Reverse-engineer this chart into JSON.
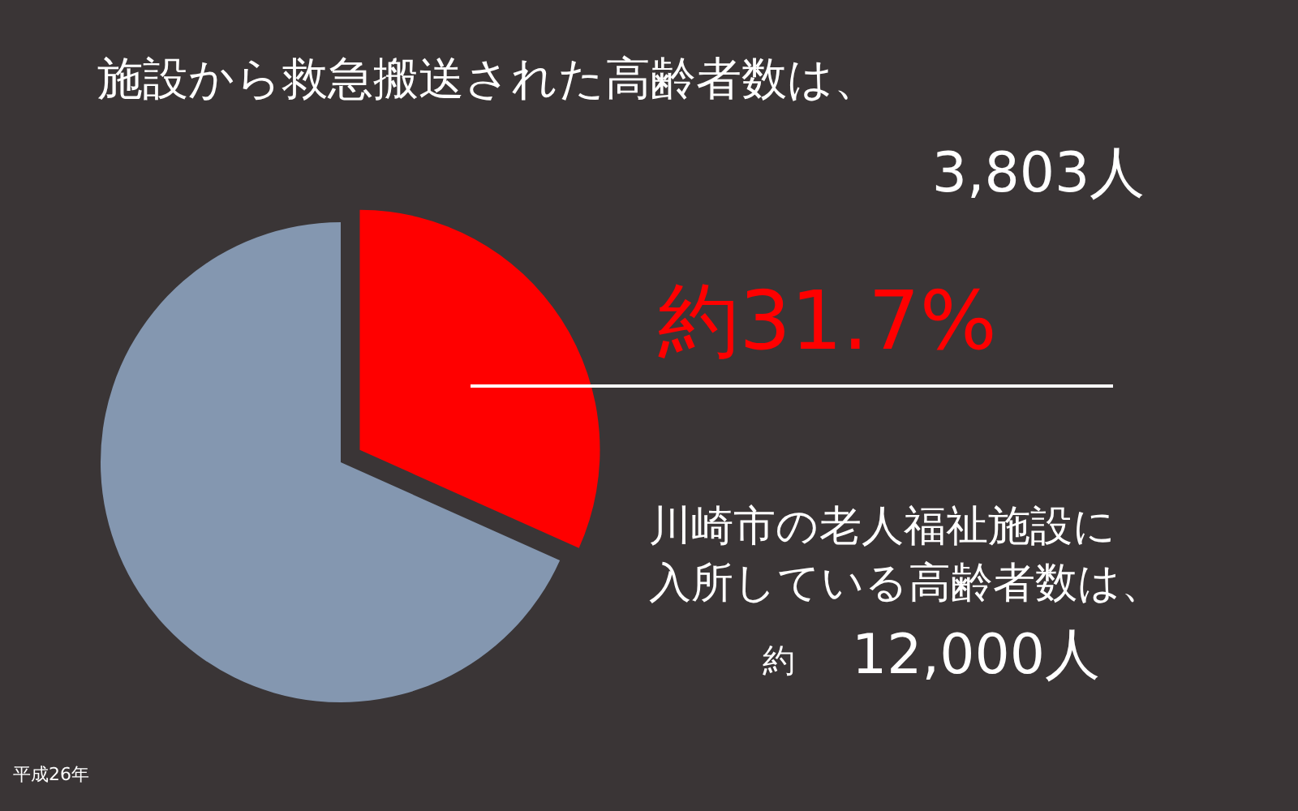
{
  "chart_data": {
    "type": "pie",
    "title": "施設から救急搬送された高齢者数は、",
    "categories": [
      null,
      null
    ],
    "values": [
      31.7,
      68.3
    ],
    "colors": [
      "#ff0000",
      "#8497b0"
    ],
    "annotations": [
      "3,803人",
      "約31.7%",
      "川崎市の老人福祉施設に",
      "入所している高齢者数は、",
      "約",
      "12,000人",
      "平成26年"
    ]
  }
}
